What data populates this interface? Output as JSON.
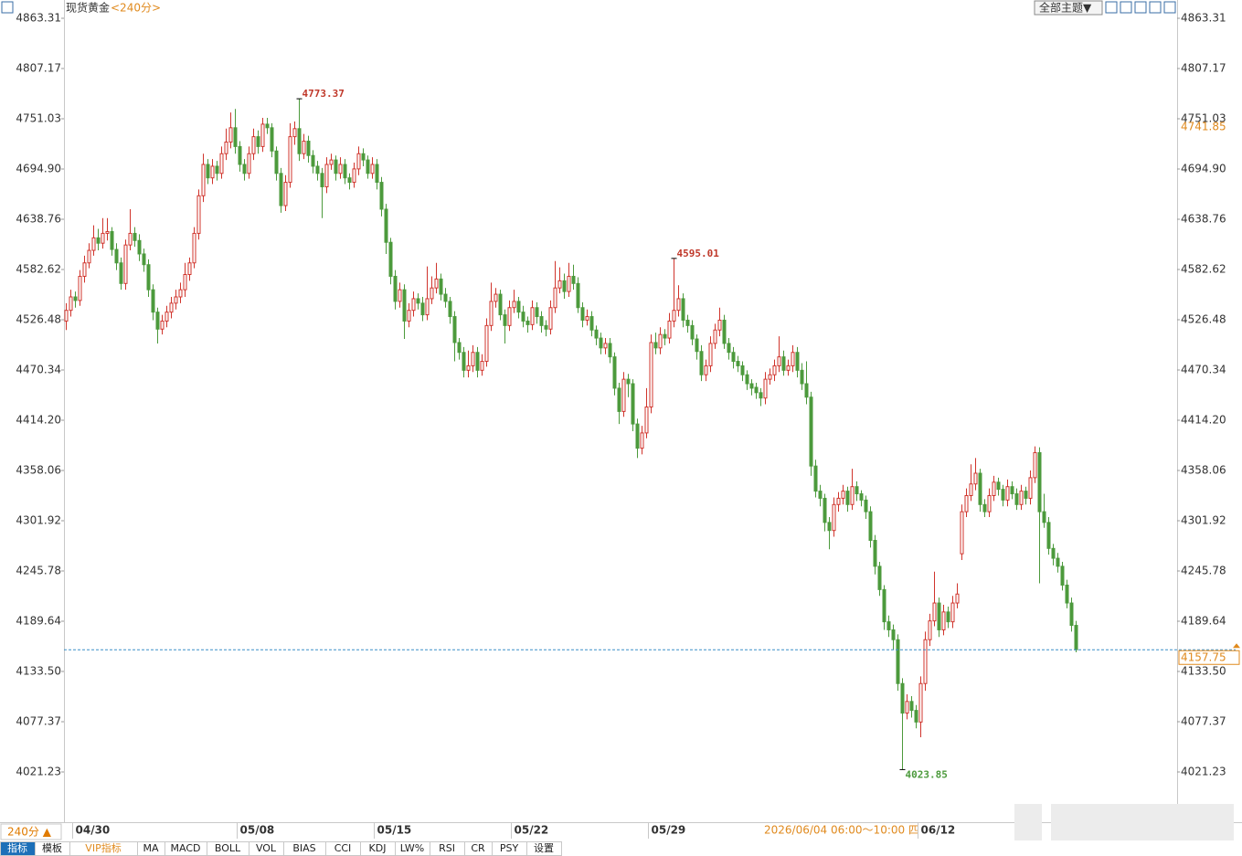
{
  "chart_data": {
    "type": "candlestick",
    "title": "现货黄金",
    "subtitle": "<240分>",
    "categories": [
      null,
      null,
      "04/30",
      null,
      null,
      null,
      null,
      null,
      null,
      null,
      null,
      null,
      null,
      null,
      null,
      null,
      null,
      null,
      null,
      null,
      null,
      null,
      null,
      null,
      null,
      null,
      null,
      null,
      null,
      null,
      null,
      null,
      null,
      null,
      null,
      null,
      null,
      null,
      "05/08",
      null,
      null,
      null,
      null,
      null,
      null,
      null,
      null,
      null,
      null,
      null,
      null,
      null,
      null,
      null,
      null,
      null,
      null,
      null,
      null,
      null,
      null,
      null,
      null,
      null,
      null,
      null,
      null,
      null,
      "05/15",
      null,
      null,
      null,
      null,
      null,
      null,
      null,
      null,
      null,
      null,
      null,
      null,
      null,
      null,
      null,
      null,
      null,
      null,
      null,
      null,
      null,
      null,
      null,
      null,
      null,
      null,
      null,
      null,
      null,
      "05/22",
      null,
      null,
      null,
      null,
      null,
      null,
      null,
      null,
      null,
      null,
      null,
      null,
      null,
      null,
      null,
      null,
      null,
      null,
      null,
      null,
      null,
      null,
      null,
      null,
      null,
      null,
      null,
      null,
      null,
      "05/29",
      null,
      null,
      null,
      null,
      null,
      null,
      null,
      null,
      null,
      null,
      null,
      null,
      null,
      null,
      null,
      null,
      null,
      null,
      null,
      null,
      null,
      null,
      null,
      null,
      null,
      null,
      null,
      null,
      null,
      null,
      null,
      null,
      null,
      null,
      null,
      null,
      null,
      null,
      null,
      null,
      null,
      null,
      null,
      null,
      null,
      null,
      null,
      null,
      null,
      null,
      null,
      null,
      null,
      null,
      null,
      null,
      null,
      null,
      "06/12",
      null,
      null,
      null,
      null,
      null,
      null,
      null,
      null,
      null,
      null,
      null,
      null,
      null,
      null,
      null,
      null,
      null,
      null,
      null,
      null,
      null,
      null,
      null,
      null,
      null,
      null,
      null,
      null,
      null,
      null,
      null,
      null
    ],
    "candles": [
      [
        4525,
        4545,
        4515,
        4537
      ],
      [
        4537,
        4560,
        4530,
        4552
      ],
      [
        4552,
        4558,
        4540,
        4548
      ],
      [
        4548,
        4582,
        4542,
        4575
      ],
      [
        4575,
        4598,
        4568,
        4590
      ],
      [
        4590,
        4612,
        4584,
        4604
      ],
      [
        4604,
        4632,
        4598,
        4618
      ],
      [
        4618,
        4628,
        4604,
        4612
      ],
      [
        4612,
        4640,
        4606,
        4623
      ],
      [
        4623,
        4640,
        4615,
        4625
      ],
      [
        4625,
        4630,
        4598,
        4605
      ],
      [
        4605,
        4612,
        4582,
        4590
      ],
      [
        4590,
        4596,
        4560,
        4567
      ],
      [
        4567,
        4616,
        4560,
        4610
      ],
      [
        4610,
        4650,
        4604,
        4623
      ],
      [
        4623,
        4630,
        4608,
        4615
      ],
      [
        4615,
        4622,
        4592,
        4600
      ],
      [
        4600,
        4606,
        4580,
        4588
      ],
      [
        4588,
        4594,
        4552,
        4560
      ],
      [
        4560,
        4566,
        4526,
        4535
      ],
      [
        4535,
        4540,
        4500,
        4516
      ],
      [
        4516,
        4532,
        4510,
        4525
      ],
      [
        4525,
        4542,
        4518,
        4535
      ],
      [
        4535,
        4552,
        4528,
        4545
      ],
      [
        4545,
        4560,
        4538,
        4552
      ],
      [
        4552,
        4568,
        4545,
        4560
      ],
      [
        4560,
        4590,
        4552,
        4577
      ],
      [
        4577,
        4596,
        4570,
        4590
      ],
      [
        4590,
        4630,
        4584,
        4623
      ],
      [
        4623,
        4672,
        4616,
        4665
      ],
      [
        4665,
        4712,
        4658,
        4700
      ],
      [
        4700,
        4706,
        4678,
        4685
      ],
      [
        4685,
        4706,
        4678,
        4698
      ],
      [
        4698,
        4704,
        4682,
        4690
      ],
      [
        4690,
        4720,
        4684,
        4712
      ],
      [
        4712,
        4740,
        4705,
        4725
      ],
      [
        4725,
        4758,
        4718,
        4741
      ],
      [
        4741,
        4762,
        4712,
        4720
      ],
      [
        4720,
        4726,
        4692,
        4700
      ],
      [
        4700,
        4706,
        4682,
        4690
      ],
      [
        4690,
        4720,
        4684,
        4712
      ],
      [
        4712,
        4740,
        4705,
        4731
      ],
      [
        4731,
        4738,
        4712,
        4720
      ],
      [
        4720,
        4752,
        4714,
        4745
      ],
      [
        4745,
        4752,
        4734,
        4741
      ],
      [
        4741,
        4746,
        4708,
        4715
      ],
      [
        4715,
        4720,
        4682,
        4690
      ],
      [
        4690,
        4696,
        4646,
        4654
      ],
      [
        4654,
        4688,
        4648,
        4680
      ],
      [
        4680,
        4746,
        4674,
        4731
      ],
      [
        4731,
        4748,
        4722,
        4740
      ],
      [
        4740,
        4773.37,
        4704,
        4712
      ],
      [
        4712,
        4734,
        4706,
        4726
      ],
      [
        4726,
        4732,
        4702,
        4710
      ],
      [
        4710,
        4716,
        4690,
        4698
      ],
      [
        4698,
        4704,
        4682,
        4690
      ],
      [
        4690,
        4696,
        4640,
        4675
      ],
      [
        4675,
        4708,
        4668,
        4700
      ],
      [
        4700,
        4712,
        4694,
        4705
      ],
      [
        4705,
        4710,
        4682,
        4690
      ],
      [
        4690,
        4708,
        4684,
        4700
      ],
      [
        4700,
        4706,
        4678,
        4685
      ],
      [
        4685,
        4690,
        4672,
        4680
      ],
      [
        4680,
        4702,
        4674,
        4695
      ],
      [
        4695,
        4720,
        4688,
        4712
      ],
      [
        4712,
        4718,
        4698,
        4705
      ],
      [
        4705,
        4710,
        4684,
        4690
      ],
      [
        4690,
        4708,
        4684,
        4700
      ],
      [
        4700,
        4706,
        4672,
        4680
      ],
      [
        4680,
        4686,
        4642,
        4650
      ],
      [
        4650,
        4656,
        4600,
        4613
      ],
      [
        4613,
        4618,
        4566,
        4575
      ],
      [
        4575,
        4582,
        4538,
        4547
      ],
      [
        4547,
        4568,
        4540,
        4560
      ],
      [
        4560,
        4566,
        4505,
        4525
      ],
      [
        4525,
        4545,
        4518,
        4537
      ],
      [
        4537,
        4558,
        4530,
        4550
      ],
      [
        4550,
        4556,
        4538,
        4545
      ],
      [
        4545,
        4552,
        4525,
        4532
      ],
      [
        4532,
        4586,
        4526,
        4550
      ],
      [
        4550,
        4575,
        4544,
        4562
      ],
      [
        4562,
        4590,
        4556,
        4572
      ],
      [
        4572,
        4578,
        4548,
        4555
      ],
      [
        4555,
        4562,
        4540,
        4547
      ],
      [
        4547,
        4552,
        4522,
        4530
      ],
      [
        4530,
        4536,
        4480,
        4501
      ],
      [
        4501,
        4506,
        4482,
        4490
      ],
      [
        4490,
        4496,
        4462,
        4470
      ],
      [
        4470,
        4492,
        4462,
        4475
      ],
      [
        4475,
        4498,
        4468,
        4490
      ],
      [
        4490,
        4496,
        4462,
        4470
      ],
      [
        4470,
        4488,
        4464,
        4480
      ],
      [
        4480,
        4528,
        4474,
        4520
      ],
      [
        4520,
        4568,
        4514,
        4547
      ],
      [
        4547,
        4562,
        4540,
        4555
      ],
      [
        4555,
        4560,
        4526,
        4532
      ],
      [
        4532,
        4538,
        4500,
        4520
      ],
      [
        4520,
        4548,
        4514,
        4540
      ],
      [
        4540,
        4560,
        4534,
        4547
      ],
      [
        4547,
        4552,
        4528,
        4535
      ],
      [
        4535,
        4542,
        4518,
        4525
      ],
      [
        4525,
        4530,
        4512,
        4521
      ],
      [
        4521,
        4548,
        4515,
        4540
      ],
      [
        4540,
        4546,
        4522,
        4530
      ],
      [
        4530,
        4536,
        4512,
        4520
      ],
      [
        4520,
        4526,
        4508,
        4516
      ],
      [
        4516,
        4548,
        4510,
        4540
      ],
      [
        4540,
        4592,
        4534,
        4562
      ],
      [
        4562,
        4585,
        4556,
        4570
      ],
      [
        4570,
        4578,
        4550,
        4558
      ],
      [
        4558,
        4590,
        4552,
        4575
      ],
      [
        4575,
        4588,
        4560,
        4567
      ],
      [
        4567,
        4574,
        4534,
        4540
      ],
      [
        4540,
        4546,
        4518,
        4526
      ],
      [
        4526,
        4538,
        4520,
        4530
      ],
      [
        4530,
        4536,
        4508,
        4515
      ],
      [
        4515,
        4520,
        4498,
        4506
      ],
      [
        4506,
        4512,
        4488,
        4495
      ],
      [
        4495,
        4506,
        4488,
        4500
      ],
      [
        4500,
        4506,
        4478,
        4485
      ],
      [
        4485,
        4490,
        4442,
        4450
      ],
      [
        4450,
        4456,
        4410,
        4424
      ],
      [
        4424,
        4468,
        4418,
        4460
      ],
      [
        4460,
        4466,
        4440,
        4455
      ],
      [
        4455,
        4460,
        4402,
        4410
      ],
      [
        4410,
        4416,
        4372,
        4383
      ],
      [
        4383,
        4408,
        4376,
        4400
      ],
      [
        4400,
        4450,
        4394,
        4429
      ],
      [
        4429,
        4510,
        4422,
        4501
      ],
      [
        4501,
        4512,
        4488,
        4495
      ],
      [
        4495,
        4518,
        4488,
        4510
      ],
      [
        4510,
        4516,
        4498,
        4506
      ],
      [
        4506,
        4534,
        4500,
        4525
      ],
      [
        4525,
        4595.01,
        4518,
        4537
      ],
      [
        4537,
        4565,
        4530,
        4550
      ],
      [
        4550,
        4556,
        4518,
        4526
      ],
      [
        4526,
        4532,
        4512,
        4520
      ],
      [
        4520,
        4526,
        4498,
        4505
      ],
      [
        4505,
        4510,
        4482,
        4491
      ],
      [
        4491,
        4498,
        4458,
        4465
      ],
      [
        4465,
        4482,
        4458,
        4475
      ],
      [
        4475,
        4508,
        4468,
        4500
      ],
      [
        4500,
        4522,
        4494,
        4515
      ],
      [
        4515,
        4540,
        4508,
        4526
      ],
      [
        4526,
        4532,
        4494,
        4500
      ],
      [
        4500,
        4506,
        4482,
        4490
      ],
      [
        4490,
        4496,
        4472,
        4480
      ],
      [
        4480,
        4486,
        4468,
        4475
      ],
      [
        4475,
        4480,
        4458,
        4465
      ],
      [
        4465,
        4470,
        4448,
        4455
      ],
      [
        4455,
        4460,
        4442,
        4450
      ],
      [
        4451,
        4456,
        4438,
        4445
      ],
      [
        4445,
        4450,
        4430,
        4439
      ],
      [
        4439,
        4468,
        4432,
        4460
      ],
      [
        4460,
        4472,
        4454,
        4465
      ],
      [
        4465,
        4482,
        4458,
        4475
      ],
      [
        4475,
        4508,
        4468,
        4485
      ],
      [
        4485,
        4492,
        4464,
        4470
      ],
      [
        4470,
        4482,
        4464,
        4475
      ],
      [
        4475,
        4498,
        4468,
        4490
      ],
      [
        4490,
        4496,
        4462,
        4470
      ],
      [
        4470,
        4478,
        4448,
        4455
      ],
      [
        4455,
        4480,
        4432,
        4440
      ],
      [
        4440,
        4446,
        4352,
        4363
      ],
      [
        4363,
        4370,
        4328,
        4335
      ],
      [
        4335,
        4342,
        4318,
        4327
      ],
      [
        4327,
        4332,
        4290,
        4300
      ],
      [
        4300,
        4306,
        4270,
        4291
      ],
      [
        4291,
        4328,
        4284,
        4320
      ],
      [
        4320,
        4334,
        4312,
        4327
      ],
      [
        4327,
        4342,
        4320,
        4335
      ],
      [
        4335,
        4340,
        4312,
        4320
      ],
      [
        4320,
        4360,
        4314,
        4340
      ],
      [
        4340,
        4346,
        4324,
        4332
      ],
      [
        4332,
        4336,
        4318,
        4325
      ],
      [
        4325,
        4330,
        4304,
        4312
      ],
      [
        4312,
        4318,
        4272,
        4280
      ],
      [
        4280,
        4286,
        4242,
        4251
      ],
      [
        4251,
        4256,
        4218,
        4225
      ],
      [
        4225,
        4230,
        4180,
        4189
      ],
      [
        4189,
        4196,
        4172,
        4180
      ],
      [
        4180,
        4186,
        4158,
        4169
      ],
      [
        4169,
        4175,
        4112,
        4120
      ],
      [
        4120,
        4126,
        4023.85,
        4087
      ],
      [
        4087,
        4108,
        4080,
        4100
      ],
      [
        4100,
        4106,
        4082,
        4090
      ],
      [
        4090,
        4096,
        4070,
        4077
      ],
      [
        4077,
        4128,
        4060,
        4120
      ],
      [
        4120,
        4178,
        4112,
        4169
      ],
      [
        4169,
        4198,
        4162,
        4190
      ],
      [
        4190,
        4245,
        4184,
        4210
      ],
      [
        4210,
        4216,
        4172,
        4180
      ],
      [
        4180,
        4208,
        4174,
        4200
      ],
      [
        4200,
        4206,
        4182,
        4189
      ],
      [
        4189,
        4218,
        4182,
        4210
      ],
      [
        4210,
        4232,
        4204,
        4220
      ],
      [
        4265,
        4320,
        4258,
        4312
      ],
      [
        4312,
        4338,
        4306,
        4330
      ],
      [
        4330,
        4365,
        4324,
        4343
      ],
      [
        4343,
        4372,
        4336,
        4355
      ],
      [
        4355,
        4360,
        4312,
        4320
      ],
      [
        4320,
        4326,
        4306,
        4312
      ],
      [
        4312,
        4338,
        4306,
        4330
      ],
      [
        4330,
        4352,
        4324,
        4345
      ],
      [
        4345,
        4350,
        4330,
        4337
      ],
      [
        4337,
        4342,
        4318,
        4325
      ],
      [
        4325,
        4348,
        4318,
        4340
      ],
      [
        4340,
        4346,
        4326,
        4332
      ],
      [
        4332,
        4338,
        4314,
        4320
      ],
      [
        4320,
        4342,
        4314,
        4335
      ],
      [
        4335,
        4340,
        4320,
        4327
      ],
      [
        4327,
        4358,
        4320,
        4350
      ],
      [
        4350,
        4385,
        4344,
        4378
      ],
      [
        4378,
        4384,
        4232,
        4312
      ],
      [
        4312,
        4332,
        4294,
        4300
      ],
      [
        4300,
        4306,
        4264,
        4271
      ],
      [
        4271,
        4276,
        4252,
        4260
      ],
      [
        4260,
        4266,
        4244,
        4251
      ],
      [
        4251,
        4256,
        4224,
        4230
      ],
      [
        4230,
        4236,
        4204,
        4210
      ],
      [
        4210,
        4216,
        4178,
        4185
      ],
      [
        4185,
        4190,
        4155,
        4157.75
      ]
    ],
    "ylim": [
      3965.09,
      4883.72
    ],
    "yticks": [
      4863.31,
      4807.17,
      4751.03,
      {
        "value": 4694.9,
        "label": "4694.90"
      },
      4638.76,
      4582.62,
      4526.48,
      4470.34,
      {
        "value": 4414.2,
        "label": "4414.20"
      },
      4358.06,
      4301.92,
      4245.78,
      4189.64,
      {
        "value": 4133.5,
        "label": "4133.50"
      },
      4077.37,
      4021.23
    ],
    "up_color": "#d0342c",
    "down_color": "#4c9a3c",
    "reference_price": 4741.85,
    "last_price_line": true
  },
  "ui": {
    "theme_button": "全部主题▼",
    "period_button": "240分 ▲",
    "crosshair_time": "2026/06/04 06:00～10:00 四",
    "tabs": [
      "指标",
      "模板",
      "VIP指标",
      "MA",
      "MACD",
      "BOLL",
      "VOL",
      "BIAS",
      "CCI",
      "KDJ",
      "LW%",
      "RSI",
      "CR",
      "PSY",
      "设置"
    ]
  }
}
